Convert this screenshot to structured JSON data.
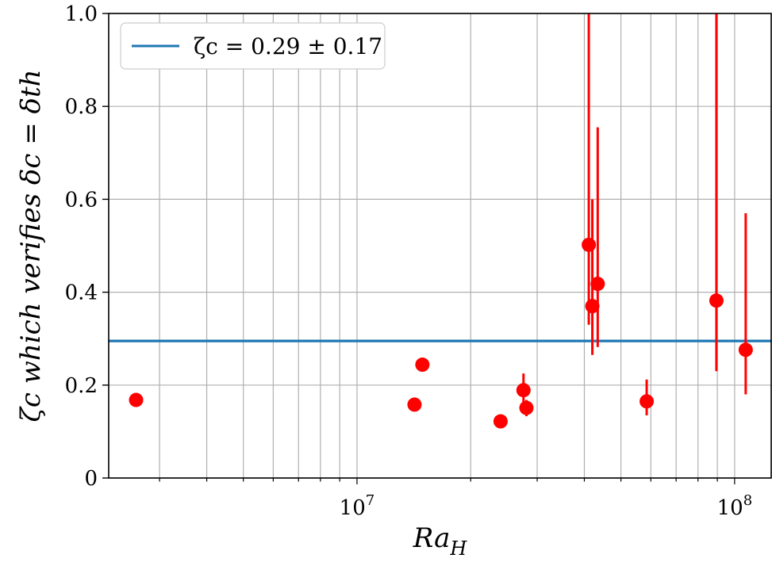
{
  "chart_data": {
    "type": "scatter",
    "xscale": "log",
    "xlim": [
      2200000,
      125000000
    ],
    "ylim": [
      0,
      1.0
    ],
    "grid": true,
    "legend_placement": "top-left",
    "xlabel": "Ra_H",
    "ylabel": "ζc which verifies δc = δth",
    "yticks": [
      "0",
      "0.2",
      "0.4",
      "0.6",
      "0.8",
      "1.0"
    ],
    "xticks": [
      "10^7",
      "10^8"
    ],
    "reference_line": {
      "label": "ζc = 0.29 ± 0.17",
      "y": 0.295,
      "color": "#1f77b4"
    },
    "series": [
      {
        "color": "#ff0000",
        "points": [
          {
            "x": 2600000,
            "y": 0.168,
            "err_low": null,
            "err_high": null
          },
          {
            "x": 14200000,
            "y": 0.158,
            "err_low": null,
            "err_high": null
          },
          {
            "x": 14900000,
            "y": 0.244,
            "err_low": null,
            "err_high": null
          },
          {
            "x": 24000000,
            "y": 0.122,
            "err_low": null,
            "err_high": null
          },
          {
            "x": 27600000,
            "y": 0.189,
            "err_low": 0.15,
            "err_high": 0.225
          },
          {
            "x": 28100000,
            "y": 0.151,
            "err_low": 0.133,
            "err_high": 0.168
          },
          {
            "x": 41100000,
            "y": 0.502,
            "err_low": 0.33,
            "err_high": 1.0
          },
          {
            "x": 42000000,
            "y": 0.37,
            "err_low": 0.265,
            "err_high": 0.6
          },
          {
            "x": 43400000,
            "y": 0.418,
            "err_low": 0.282,
            "err_high": 0.755
          },
          {
            "x": 58500000,
            "y": 0.165,
            "err_low": 0.135,
            "err_high": 0.212
          },
          {
            "x": 89500000,
            "y": 0.382,
            "err_low": 0.23,
            "err_high": 1.0
          },
          {
            "x": 107000000,
            "y": 0.276,
            "err_low": 0.18,
            "err_high": 0.57
          }
        ]
      }
    ]
  }
}
